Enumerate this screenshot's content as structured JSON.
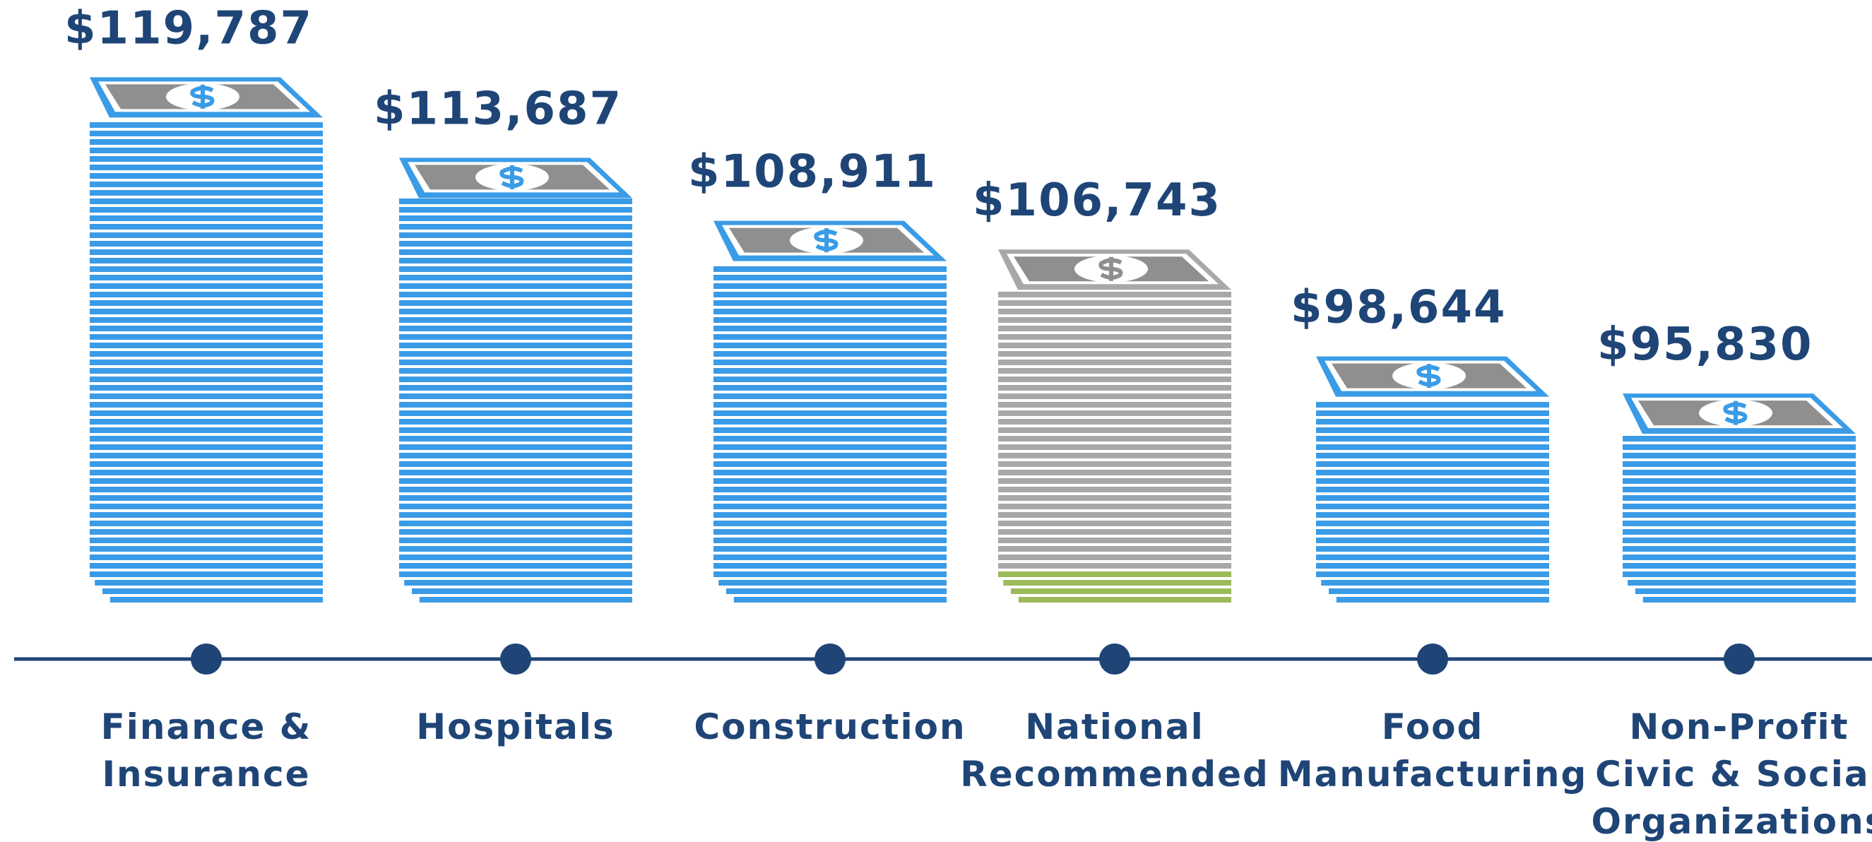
{
  "chart_data": {
    "type": "pictograph",
    "categories": [
      "Finance &\nInsurance",
      "Hospitals",
      "Construction",
      "National\nRecommended",
      "Food\nManufacturing",
      "Non-Profit\nCivic & Social\nOrganizations"
    ],
    "values": [
      119787,
      113687,
      108911,
      106743,
      98644,
      95830
    ],
    "value_labels": [
      "$119,787",
      "$113,687",
      "$108,911",
      "$106,743",
      "$98,644",
      "$95,830"
    ],
    "colors": [
      "#3a9be6",
      "#3a9be6",
      "#3a9be6",
      "#a8a8a8",
      "#3a9be6",
      "#3a9be6"
    ],
    "accent_color": "#9bbb59",
    "axis_color": "#1f4577",
    "ylim": [
      80000,
      125000
    ]
  }
}
